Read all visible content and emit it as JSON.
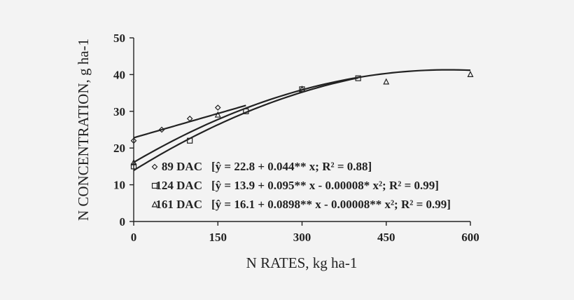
{
  "chart_data": {
    "type": "scatter",
    "xlabel": "N RATES, kg ha-1",
    "ylabel": "N CONCENTRATION, g ha-1",
    "xlim": [
      0,
      600
    ],
    "ylim": [
      0,
      50
    ],
    "xticks": [
      0,
      150,
      300,
      450,
      600
    ],
    "yticks": [
      0,
      10,
      20,
      30,
      40,
      50
    ],
    "grid": false,
    "legend_position": "bottom-left inside plot",
    "series": [
      {
        "name": "89 DAC",
        "marker": "diamond",
        "points": [
          [
            0,
            22
          ],
          [
            50,
            25
          ],
          [
            100,
            28
          ],
          [
            150,
            31
          ]
        ],
        "fit": {
          "a": 22.8,
          "b": 0.044,
          "c": 0,
          "x_range": [
            0,
            200
          ]
        },
        "legend_label": "89 DAC",
        "legend_equation": "[ŷ = 22.8 + 0.044** x; R² = 0.88]"
      },
      {
        "name": "124 DAC",
        "marker": "square",
        "points": [
          [
            0,
            15
          ],
          [
            100,
            22
          ],
          [
            200,
            30
          ],
          [
            300,
            36
          ],
          [
            400,
            39
          ]
        ],
        "fit": {
          "a": 13.9,
          "b": 0.095,
          "c": -8e-05,
          "x_range": [
            0,
            400
          ]
        },
        "legend_label": "124 DAC",
        "legend_equation": "[ŷ = 13.9 + 0.095** x - 0.00008* x²;  R² = 0.99]"
      },
      {
        "name": "161 DAC",
        "marker": "triangle",
        "points": [
          [
            0,
            16
          ],
          [
            150,
            29
          ],
          [
            300,
            36
          ],
          [
            450,
            38
          ],
          [
            600,
            40
          ]
        ],
        "fit": {
          "a": 16.1,
          "b": 0.0898,
          "c": -8e-05,
          "x_range": [
            0,
            600
          ]
        },
        "legend_label": "161 DAC",
        "legend_equation": "[ŷ = 16.1 + 0.0898** x - 0.00008** x²;  R² = 0.99]"
      }
    ]
  }
}
